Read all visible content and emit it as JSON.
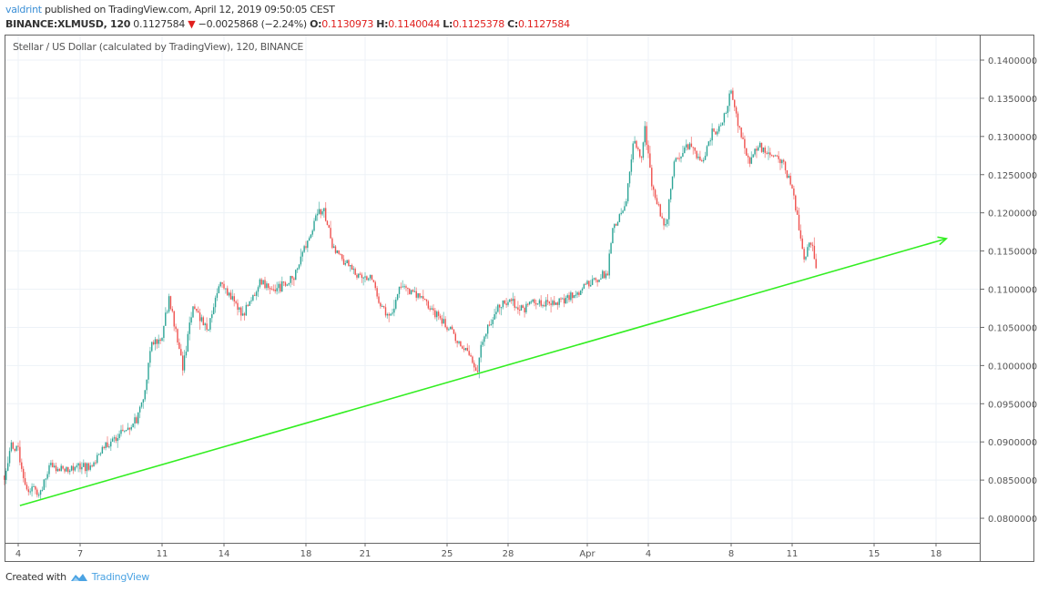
{
  "header": {
    "user": "valdrint",
    "published": " published on TradingView.com, April 12, 2019 09:50:05 CEST",
    "symbol": "BINANCE:XLMUSD, 120",
    "last": "0.1127584",
    "change_arrow": "▼",
    "change": "−0.0025868 (−2.24%)",
    "o_label": "O:",
    "o": "0.1130973",
    "h_label": "H:",
    "h": "0.1140044",
    "l_label": "L:",
    "l": "0.1125378",
    "c_label": "C:",
    "c": "0.1127584"
  },
  "chart_title": "Stellar / US Dollar (calculated by TradingView), 120, BINANCE",
  "footer": {
    "created_with": "Created with",
    "brand": "TradingView",
    "brand_icon": "tradingview-logo-icon"
  },
  "colors": {
    "up": "#2ea597",
    "down": "#ef5350",
    "trendline": "#33ee22",
    "grid": "#edf2f7",
    "axis": "#555555"
  },
  "chart_data": {
    "type": "candlestick",
    "interval": "120",
    "ylim": [
      0.0768,
      0.1433
    ],
    "y_ticks": [
      "0.1400000",
      "0.1350000",
      "0.1300000",
      "0.1250000",
      "0.1200000",
      "0.1150000",
      "0.1100000",
      "0.1050000",
      "0.1000000",
      "0.0950000",
      "0.0900000",
      "0.0850000",
      "0.0800000"
    ],
    "x_ticks": [
      {
        "label": "4",
        "date": "2019-03-04"
      },
      {
        "label": "7",
        "date": "2019-03-07"
      },
      {
        "label": "11",
        "date": "2019-03-11"
      },
      {
        "label": "14",
        "date": "2019-03-14"
      },
      {
        "label": "18",
        "date": "2019-03-18"
      },
      {
        "label": "21",
        "date": "2019-03-21"
      },
      {
        "label": "25",
        "date": "2019-03-25"
      },
      {
        "label": "28",
        "date": "2019-03-28"
      },
      {
        "label": "Apr",
        "date": "2019-04-01"
      },
      {
        "label": "4",
        "date": "2019-04-04"
      },
      {
        "label": "8",
        "date": "2019-04-08"
      },
      {
        "label": "11",
        "date": "2019-04-11"
      },
      {
        "label": "15",
        "date": "2019-04-15"
      },
      {
        "label": "18",
        "date": "2019-04-18"
      }
    ],
    "grid": true,
    "price_path": [
      [
        "2019-03-03T08",
        0.0856
      ],
      [
        "2019-03-03T15",
        0.0894
      ],
      [
        "2019-03-04T00",
        0.0888
      ],
      [
        "2019-03-04T09",
        0.084
      ],
      [
        "2019-03-05T02",
        0.0834
      ],
      [
        "2019-03-05T13",
        0.087
      ],
      [
        "2019-03-06T00",
        0.0864
      ],
      [
        "2019-03-07T13",
        0.0868
      ],
      [
        "2019-03-08T05",
        0.0894
      ],
      [
        "2019-03-08T17",
        0.0906
      ],
      [
        "2019-03-09T08",
        0.0918
      ],
      [
        "2019-03-09T19",
        0.093
      ],
      [
        "2019-03-10T04",
        0.0966
      ],
      [
        "2019-03-10T11",
        0.1031
      ],
      [
        "2019-03-10T22",
        0.1031
      ],
      [
        "2019-03-11T08",
        0.1085
      ],
      [
        "2019-03-11T19",
        0.1031
      ],
      [
        "2019-03-12T00",
        0.0996
      ],
      [
        "2019-03-12T11",
        0.1073
      ],
      [
        "2019-03-13T06",
        0.1049
      ],
      [
        "2019-03-13T19",
        0.1109
      ],
      [
        "2019-03-14T06",
        0.1091
      ],
      [
        "2019-03-14T22",
        0.1067
      ],
      [
        "2019-03-15T19",
        0.1109
      ],
      [
        "2019-03-16T11",
        0.1097
      ],
      [
        "2019-03-17T09",
        0.1115
      ],
      [
        "2019-03-17T19",
        0.1145
      ],
      [
        "2019-03-18T06",
        0.1166
      ],
      [
        "2019-03-18T12",
        0.1198
      ],
      [
        "2019-03-18T22",
        0.1204
      ],
      [
        "2019-03-19T10",
        0.1151
      ],
      [
        "2019-03-20T12",
        0.1121
      ],
      [
        "2019-03-21T10",
        0.1115
      ],
      [
        "2019-03-21T19",
        0.1073
      ],
      [
        "2019-03-22T06",
        0.1067
      ],
      [
        "2019-03-22T17",
        0.1103
      ],
      [
        "2019-03-23T14",
        0.1091
      ],
      [
        "2019-03-24T12",
        0.1067
      ],
      [
        "2019-03-25T10",
        0.1037
      ],
      [
        "2019-03-26T01",
        0.1013
      ],
      [
        "2019-03-26T12",
        0.0996
      ],
      [
        "2019-03-26T17",
        0.1031
      ],
      [
        "2019-03-27T10",
        0.1073
      ],
      [
        "2019-03-28T01",
        0.1085
      ],
      [
        "2019-03-28T17",
        0.1073
      ],
      [
        "2019-03-29T07",
        0.1085
      ],
      [
        "2019-03-30T07",
        0.1079
      ],
      [
        "2019-03-31T05",
        0.1091
      ],
      [
        "2019-03-31T14",
        0.1097
      ],
      [
        "2019-04-01T12",
        0.1115
      ],
      [
        "2019-04-02T00",
        0.1121
      ],
      [
        "2019-04-02T05",
        0.1174
      ],
      [
        "2019-04-02T22",
        0.1216
      ],
      [
        "2019-04-03T07",
        0.13
      ],
      [
        "2019-04-03T17",
        0.1264
      ],
      [
        "2019-04-03T19",
        0.1318
      ],
      [
        "2019-04-04T05",
        0.1228
      ],
      [
        "2019-04-04T20",
        0.118
      ],
      [
        "2019-04-05T07",
        0.127
      ],
      [
        "2019-04-06T00",
        0.1288
      ],
      [
        "2019-04-06T14",
        0.1264
      ],
      [
        "2019-04-07T02",
        0.1306
      ],
      [
        "2019-04-07T12",
        0.1312
      ],
      [
        "2019-04-08T00",
        0.1359
      ],
      [
        "2019-04-08T10",
        0.1306
      ],
      [
        "2019-04-08T22",
        0.1264
      ],
      [
        "2019-04-09T07",
        0.1288
      ],
      [
        "2019-04-10T00",
        0.1276
      ],
      [
        "2019-04-10T12",
        0.127
      ],
      [
        "2019-04-11T00",
        0.1234
      ],
      [
        "2019-04-11T07",
        0.1186
      ],
      [
        "2019-04-11T14",
        0.1139
      ],
      [
        "2019-04-11T22",
        0.1162
      ],
      [
        "2019-04-12T05",
        0.1127584
      ]
    ],
    "trendline": {
      "start": [
        "2019-03-04T02",
        0.08166
      ],
      "end": [
        "2019-04-18T12",
        0.11662
      ],
      "arrow": true
    }
  }
}
